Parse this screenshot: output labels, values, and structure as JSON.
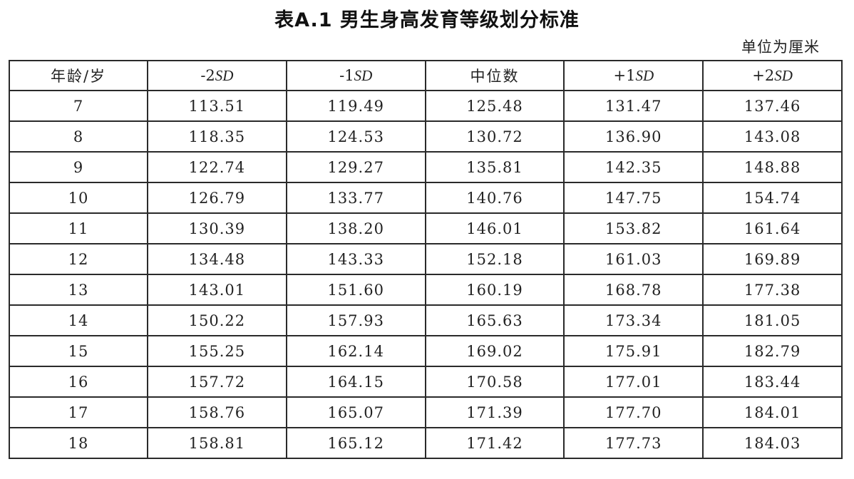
{
  "title": "表A.1  男生身高发育等级划分标准",
  "unit": "单位为厘米",
  "table": {
    "headers": [
      {
        "prefix": "",
        "label": "年龄/岁"
      },
      {
        "prefix": "-2",
        "label": "SD"
      },
      {
        "prefix": "-1",
        "label": "SD"
      },
      {
        "prefix": "",
        "label": "中位数"
      },
      {
        "prefix": "+1",
        "label": "SD"
      },
      {
        "prefix": "+2",
        "label": "SD"
      }
    ],
    "rows": [
      [
        "7",
        "113.51",
        "119.49",
        "125.48",
        "131.47",
        "137.46"
      ],
      [
        "8",
        "118.35",
        "124.53",
        "130.72",
        "136.90",
        "143.08"
      ],
      [
        "9",
        "122.74",
        "129.27",
        "135.81",
        "142.35",
        "148.88"
      ],
      [
        "10",
        "126.79",
        "133.77",
        "140.76",
        "147.75",
        "154.74"
      ],
      [
        "11",
        "130.39",
        "138.20",
        "146.01",
        "153.82",
        "161.64"
      ],
      [
        "12",
        "134.48",
        "143.33",
        "152.18",
        "161.03",
        "169.89"
      ],
      [
        "13",
        "143.01",
        "151.60",
        "160.19",
        "168.78",
        "177.38"
      ],
      [
        "14",
        "150.22",
        "157.93",
        "165.63",
        "173.34",
        "181.05"
      ],
      [
        "15",
        "155.25",
        "162.14",
        "169.02",
        "175.91",
        "182.79"
      ],
      [
        "16",
        "157.72",
        "164.15",
        "170.58",
        "177.01",
        "183.44"
      ],
      [
        "17",
        "158.76",
        "165.07",
        "171.39",
        "177.70",
        "184.01"
      ],
      [
        "18",
        "158.81",
        "165.12",
        "171.42",
        "177.73",
        "184.03"
      ]
    ]
  }
}
